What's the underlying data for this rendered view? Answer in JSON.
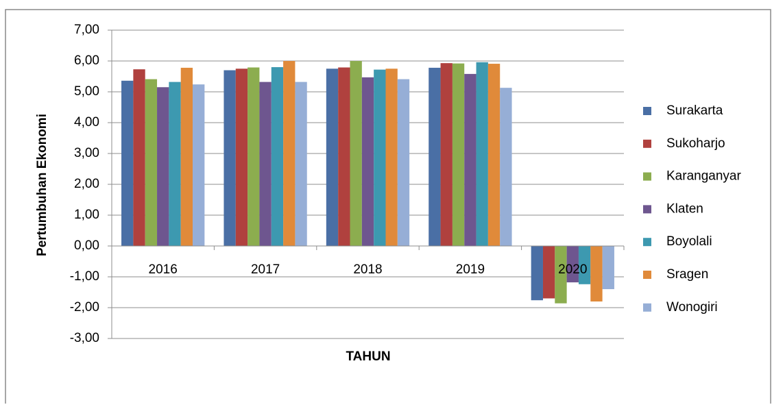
{
  "chart_data": {
    "type": "bar",
    "y_label": "Pertumbuhan Ekonomi",
    "x_label": "TAHUN",
    "categories": [
      "2016",
      "2017",
      "2018",
      "2019",
      "2020"
    ],
    "series": [
      {
        "name": "Surakarta",
        "color": "#4a6fa5",
        "values": [
          5.36,
          5.7,
          5.75,
          5.78,
          -1.76
        ]
      },
      {
        "name": "Sukoharjo",
        "color": "#b0413e",
        "values": [
          5.73,
          5.75,
          5.79,
          5.93,
          -1.7
        ]
      },
      {
        "name": "Karanganyar",
        "color": "#8cad4f",
        "values": [
          5.41,
          5.79,
          6.0,
          5.92,
          -1.86
        ]
      },
      {
        "name": "Klaten",
        "color": "#6e568f",
        "values": [
          5.15,
          5.32,
          5.47,
          5.58,
          -1.18
        ]
      },
      {
        "name": "Boyolali",
        "color": "#3d99b0",
        "values": [
          5.32,
          5.8,
          5.72,
          5.96,
          -1.24
        ]
      },
      {
        "name": "Sragen",
        "color": "#e08a3a",
        "values": [
          5.78,
          6.0,
          5.75,
          5.91,
          -1.8
        ]
      },
      {
        "name": "Wonogiri",
        "color": "#96aed6",
        "values": [
          5.24,
          5.32,
          5.41,
          5.13,
          -1.4
        ]
      }
    ],
    "ylim": [
      -3,
      7
    ],
    "yticks": [
      {
        "value": -3,
        "label": "-3,00"
      },
      {
        "value": -2,
        "label": "-2,00"
      },
      {
        "value": -1,
        "label": "-1,00"
      },
      {
        "value": 0,
        "label": "0,00"
      },
      {
        "value": 1,
        "label": "1,00"
      },
      {
        "value": 2,
        "label": "2,00"
      },
      {
        "value": 3,
        "label": "3,00"
      },
      {
        "value": 4,
        "label": "4,00"
      },
      {
        "value": 5,
        "label": "5,00"
      },
      {
        "value": 6,
        "label": "6,00"
      },
      {
        "value": 7,
        "label": "7,00"
      }
    ],
    "grid": true,
    "legend": "right"
  }
}
